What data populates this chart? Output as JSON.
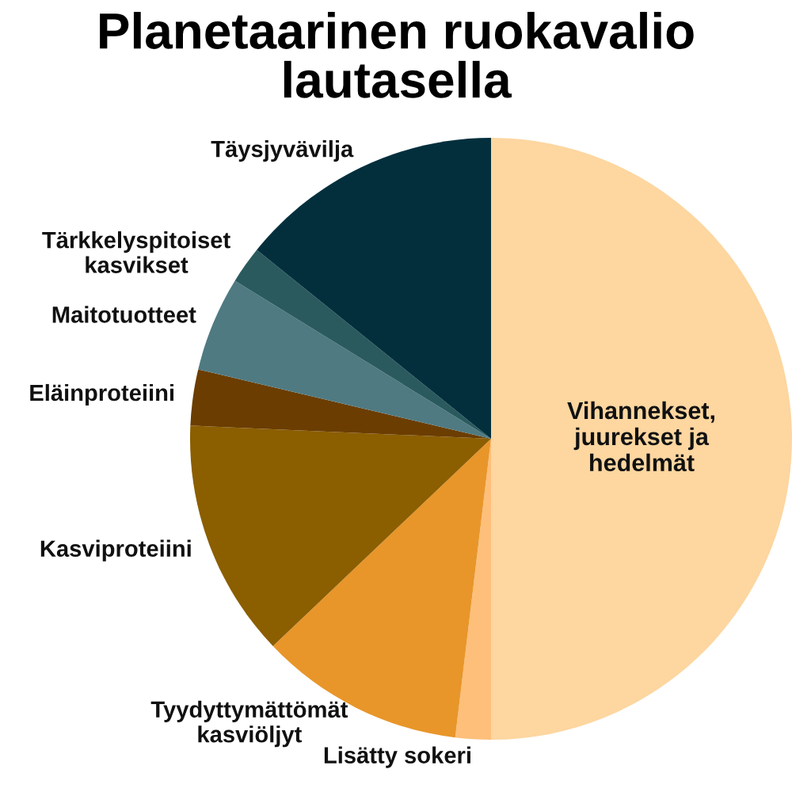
{
  "chart_data": {
    "type": "pie",
    "title": "Planetaarinen ruokavalio\nlautasella",
    "categories": [
      "Vihannekset,\njuurekset ja\nhedelmät",
      "Lisätty sokeri",
      "Tyydyttymättömät\nkasviöljyt",
      "Kasviproteiini",
      "Eläinproteiini",
      "Maitotuotteet",
      "Tärkkelyspitoiset\nkasvikset",
      "Täysjyvävilja"
    ],
    "values": [
      50,
      1.9,
      11,
      12.8,
      3,
      5.1,
      2,
      14.2
    ],
    "colors": [
      "#fdd6a0",
      "#fdbf7a",
      "#e8962a",
      "#8b5e00",
      "#6b3d00",
      "#4f7a82",
      "#2a5a5e",
      "#032f3d"
    ],
    "legend": false
  }
}
